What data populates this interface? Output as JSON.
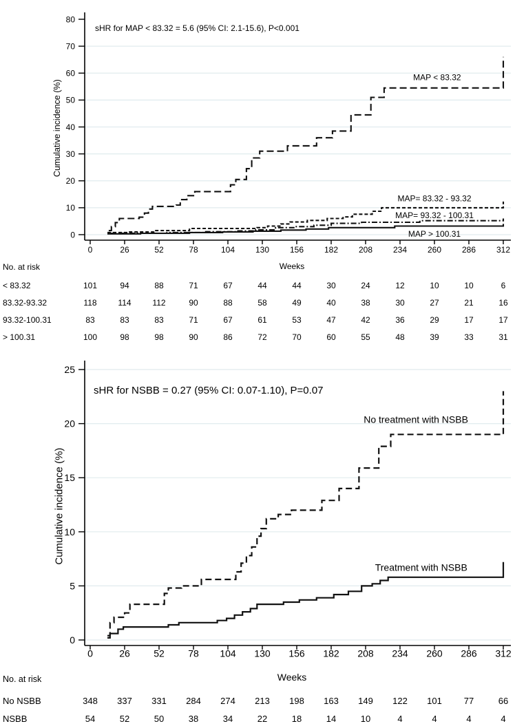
{
  "palette": {
    "background": "#ffffff",
    "curve_color": "#111111",
    "axis_color": "#000000",
    "grid_color": "#e0ebee",
    "text_color": "#000000"
  },
  "chart_data": [
    {
      "type": "line",
      "subtype": "step-cumulative-incidence",
      "annotation": "sHR for MAP < 83.32 = 5.6 (95% CI: 2.1-15.6), P<0.001",
      "ylabel": "Cumulative incidence (%)",
      "xlabel": "Weeks",
      "ylim": [
        0,
        80
      ],
      "xlim": [
        0,
        312
      ],
      "yticks": [
        0,
        10,
        20,
        30,
        40,
        50,
        60,
        70,
        80
      ],
      "xticks": [
        0,
        26,
        52,
        78,
        104,
        130,
        156,
        182,
        208,
        234,
        260,
        286,
        312
      ],
      "grid_values": [
        0,
        10,
        20,
        30,
        40,
        50,
        60,
        70
      ],
      "grid": "horizontal",
      "legend_position": "inline-labels",
      "series": [
        {
          "name": "MAP < 83.32",
          "style": "long-dash",
          "label_at": [
            262,
            58.5
          ],
          "points": [
            [
              14,
              1.5
            ],
            [
              16,
              3
            ],
            [
              19,
              4.5
            ],
            [
              22,
              6
            ],
            [
              37,
              6.5
            ],
            [
              41,
              8
            ],
            [
              44,
              9.5
            ],
            [
              47,
              10.5
            ],
            [
              65,
              11
            ],
            [
              68,
              13
            ],
            [
              73,
              14.5
            ],
            [
              79,
              16
            ],
            [
              106,
              18.5
            ],
            [
              110,
              20.5
            ],
            [
              118,
              24.5
            ],
            [
              122,
              28.5
            ],
            [
              128,
              31
            ],
            [
              149,
              33
            ],
            [
              171,
              36
            ],
            [
              183,
              38.5
            ],
            [
              197,
              44.5
            ],
            [
              212,
              51
            ],
            [
              222,
              54.5
            ],
            [
              312,
              66
            ]
          ]
        },
        {
          "name": "MAP= 83.32 - 93.32",
          "style": "short-dash",
          "label_at": [
            260,
            13.5
          ],
          "points": [
            [
              13,
              0.8
            ],
            [
              29,
              1
            ],
            [
              48,
              1.5
            ],
            [
              75,
              2.3
            ],
            [
              126,
              2.6
            ],
            [
              134,
              3.2
            ],
            [
              144,
              4
            ],
            [
              151,
              4.7
            ],
            [
              164,
              5.3
            ],
            [
              179,
              6
            ],
            [
              191,
              6.6
            ],
            [
              198,
              7.6
            ],
            [
              213,
              8.7
            ],
            [
              220,
              10
            ],
            [
              312,
              12.3
            ]
          ]
        },
        {
          "name": "MAP= 93.32 - 100.31",
          "style": "dash-dot",
          "label_at": [
            260,
            7.2
          ],
          "points": [
            [
              13,
              0.5
            ],
            [
              58,
              0.8
            ],
            [
              86,
              1.1
            ],
            [
              110,
              1.4
            ],
            [
              125,
              1.8
            ],
            [
              140,
              2.6
            ],
            [
              155,
              3
            ],
            [
              169,
              3.5
            ],
            [
              182,
              4.2
            ],
            [
              205,
              4.6
            ],
            [
              249,
              5.2
            ],
            [
              312,
              6
            ]
          ]
        },
        {
          "name": "MAP > 100.31",
          "style": "solid",
          "label_at": [
            260,
            0.3
          ],
          "points": [
            [
              13,
              0.3
            ],
            [
              38,
              0.5
            ],
            [
              75,
              0.8
            ],
            [
              100,
              1
            ],
            [
              123,
              1.3
            ],
            [
              144,
              1.7
            ],
            [
              163,
              2.1
            ],
            [
              180,
              2.6
            ],
            [
              230,
              3.2
            ],
            [
              312,
              4
            ]
          ]
        }
      ],
      "risk_table": {
        "title": "No. at risk",
        "rows": [
          {
            "label": "< 83.32",
            "values": [
              101,
              94,
              88,
              71,
              67,
              44,
              44,
              30,
              24,
              12,
              10,
              10,
              6
            ]
          },
          {
            "label": "83.32-93.32",
            "values": [
              118,
              114,
              112,
              90,
              88,
              58,
              49,
              40,
              38,
              30,
              27,
              21,
              16
            ]
          },
          {
            "label": "93.32-100.31",
            "values": [
              83,
              83,
              83,
              71,
              67,
              61,
              53,
              47,
              42,
              36,
              29,
              17,
              17
            ]
          },
          {
            "label": "> 100.31",
            "values": [
              100,
              98,
              98,
              90,
              86,
              72,
              70,
              60,
              55,
              48,
              39,
              33,
              31
            ]
          }
        ]
      }
    },
    {
      "type": "line",
      "subtype": "step-cumulative-incidence",
      "annotation": "sHR for NSBB = 0.27 (95% CI: 0.07-1.10), P=0.07",
      "ylabel": "Cumulative incidence (%)",
      "xlabel": "Weeks",
      "ylim": [
        0,
        25
      ],
      "xlim": [
        0,
        312
      ],
      "yticks": [
        0,
        5,
        10,
        15,
        20,
        25
      ],
      "xticks": [
        0,
        26,
        52,
        78,
        104,
        130,
        156,
        182,
        208,
        234,
        260,
        286,
        312
      ],
      "grid_values": [
        0,
        5,
        10,
        15,
        20,
        25
      ],
      "grid": "horizontal",
      "legend_position": "inline-labels",
      "series": [
        {
          "name": "No treatment with NSBB",
          "style": "dashed",
          "label_at": [
            246,
            20.4
          ],
          "points": [
            [
              13,
              0.4
            ],
            [
              15,
              1.6
            ],
            [
              18,
              2.1
            ],
            [
              26,
              2.5
            ],
            [
              30,
              3.3
            ],
            [
              56,
              4.3
            ],
            [
              59,
              4.8
            ],
            [
              69,
              5
            ],
            [
              84,
              5.6
            ],
            [
              110,
              6.3
            ],
            [
              114,
              7.1
            ],
            [
              118,
              7.8
            ],
            [
              122,
              8.6
            ],
            [
              126,
              9.6
            ],
            [
              129,
              10.3
            ],
            [
              133,
              11.2
            ],
            [
              142,
              11.6
            ],
            [
              152,
              12
            ],
            [
              175,
              12.9
            ],
            [
              188,
              14
            ],
            [
              203,
              15.9
            ],
            [
              218,
              17.9
            ],
            [
              227,
              19
            ],
            [
              312,
              23
            ]
          ]
        },
        {
          "name": "Treatment with NSBB",
          "style": "solid",
          "label_at": [
            250,
            6.7
          ],
          "points": [
            [
              13,
              0.2
            ],
            [
              15,
              0.6
            ],
            [
              21,
              1
            ],
            [
              25,
              1.2
            ],
            [
              59,
              1.4
            ],
            [
              67,
              1.6
            ],
            [
              96,
              1.8
            ],
            [
              103,
              2
            ],
            [
              109,
              2.3
            ],
            [
              115,
              2.6
            ],
            [
              121,
              2.9
            ],
            [
              126,
              3.3
            ],
            [
              146,
              3.5
            ],
            [
              158,
              3.7
            ],
            [
              171,
              3.9
            ],
            [
              184,
              4.2
            ],
            [
              195,
              4.5
            ],
            [
              205,
              5
            ],
            [
              213,
              5.2
            ],
            [
              219,
              5.5
            ],
            [
              225,
              5.8
            ],
            [
              312,
              7.2
            ]
          ]
        }
      ],
      "risk_table": {
        "title": "No. at risk",
        "rows": [
          {
            "label": "No NSBB",
            "values": [
              348,
              337,
              331,
              284,
              274,
              213,
              198,
              163,
              149,
              122,
              101,
              77,
              66
            ]
          },
          {
            "label": "NSBB",
            "values": [
              54,
              52,
              50,
              38,
              34,
              22,
              18,
              14,
              10,
              4,
              4,
              4,
              4
            ]
          }
        ]
      }
    }
  ]
}
